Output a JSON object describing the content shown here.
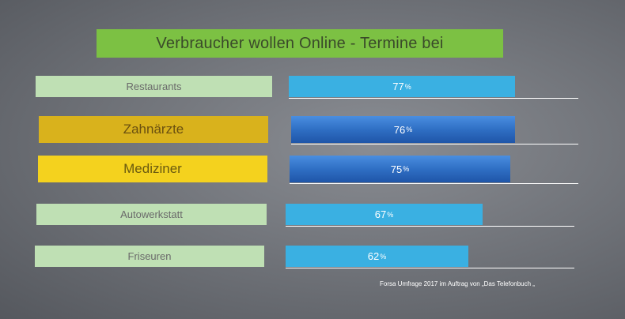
{
  "chart_data": {
    "type": "bar",
    "title": "Verbraucher wollen Online - Termine bei",
    "categories": [
      "Restaurants",
      "Zahnärzte",
      "Mediziner",
      "Autowerkstatt",
      "Friseuren"
    ],
    "values": [
      77,
      76,
      75,
      67,
      62
    ],
    "value_labels": [
      "77",
      "76",
      "75",
      "67",
      "62"
    ],
    "unit": "%",
    "xlim": [
      0,
      100
    ],
    "source": "Forsa Umfrage 2017 im Auftrag von „Das Telefonbuch „"
  },
  "colors": {
    "title_bg": "#7cc143",
    "label_light": "#bfe0b4",
    "label_gold": "#d9b21c",
    "label_yellow": "#f4d21e",
    "bar_light": "#3ab0e2",
    "bar_dark": "#2f6fc4"
  }
}
